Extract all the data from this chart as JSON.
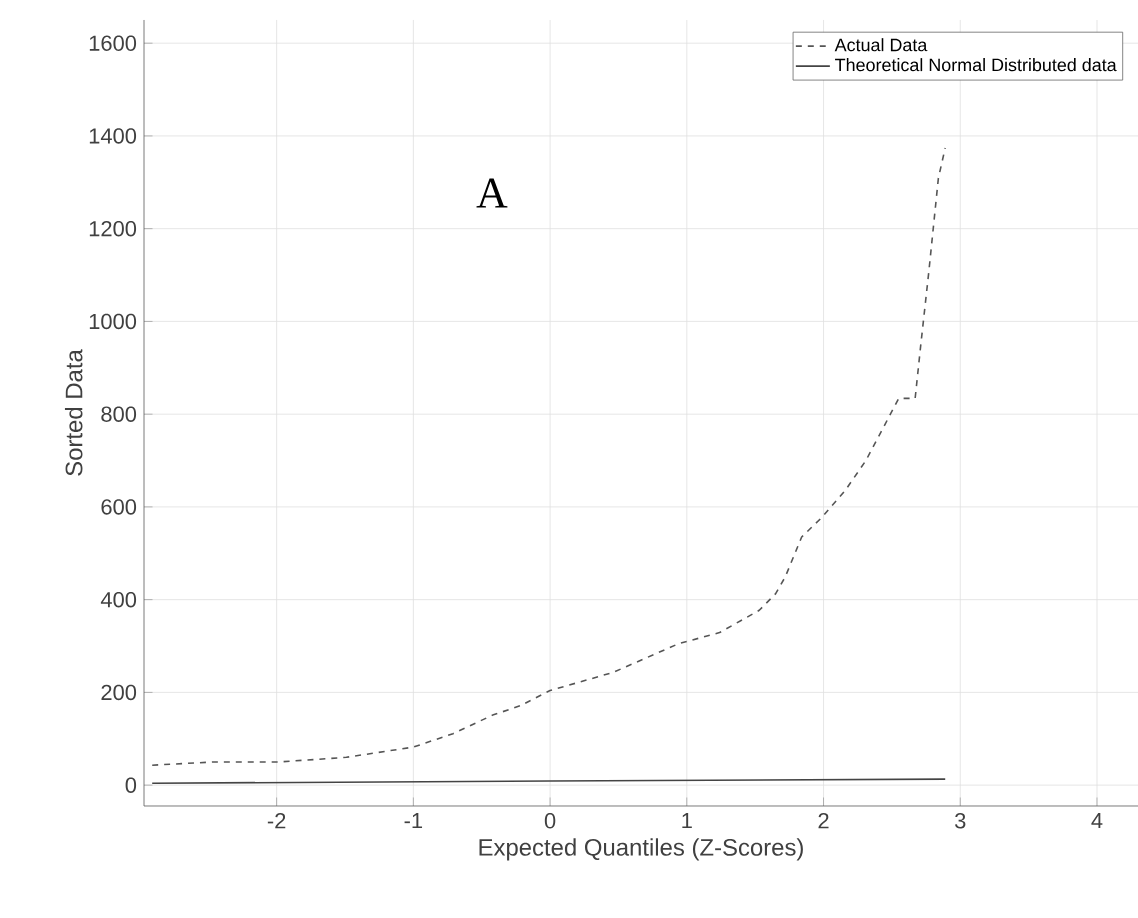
{
  "chart_data": {
    "type": "line",
    "xlabel": "Expected Quantiles (Z-Scores)",
    "ylabel": "Sorted Data",
    "annotations": [
      "A"
    ],
    "xlim": [
      -2.97,
      4.3
    ],
    "ylim": [
      -45,
      1650
    ],
    "xticks": [
      -2,
      -1,
      0,
      1,
      2,
      3,
      4
    ],
    "yticks": [
      0,
      200,
      400,
      600,
      800,
      1000,
      1200,
      1400,
      1600
    ],
    "grid": true,
    "legend": "top right",
    "series": [
      {
        "name": "Actual Data",
        "color": "#555555",
        "line_style": "dashed",
        "x": [
          -2.91,
          -2.46,
          -1.98,
          -1.49,
          -1.0,
          -0.71,
          -0.42,
          -0.22,
          0,
          0.46,
          0.94,
          1.24,
          1.53,
          1.65,
          1.72,
          1.84,
          1.99,
          2.16,
          2.31,
          2.55,
          2.67,
          2.71,
          2.77,
          2.84,
          2.89
        ],
        "values": [
          43,
          50,
          50,
          60,
          82,
          111,
          151,
          171,
          204,
          243,
          305,
          329,
          377,
          413,
          449,
          535,
          578,
          636,
          700,
          834,
          834,
          946,
          1107,
          1309,
          1374
        ]
      },
      {
        "name": "Theoretical Normal Distributed data",
        "color": "#444444",
        "line_style": "solid",
        "x": [
          -2.91,
          0,
          2.89
        ],
        "values": [
          4,
          9,
          13
        ]
      }
    ]
  }
}
